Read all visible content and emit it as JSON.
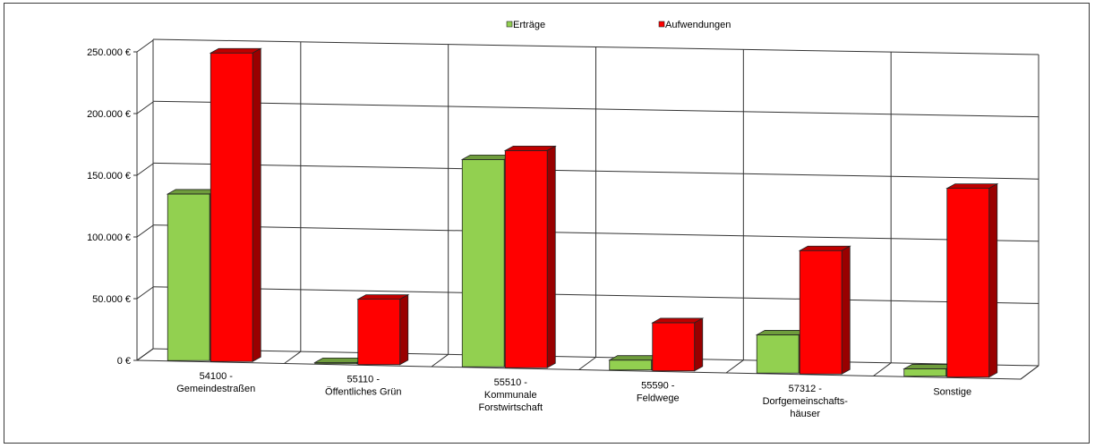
{
  "chart_data": {
    "type": "bar",
    "categories": [
      [
        "54100 -",
        "Gemeindestraßen"
      ],
      [
        "55110 -",
        "Öffentliches Grün"
      ],
      [
        "55510 -",
        "Kommunale",
        "Forstwirtschaft"
      ],
      [
        "55590 -",
        "Feldwege"
      ],
      [
        "57312 -",
        "Dorfgemeinschafts-",
        "häuser"
      ],
      [
        "Sonstige"
      ]
    ],
    "series": [
      {
        "name": "Erträge",
        "color": "#92d050",
        "values": [
          135000,
          1000,
          168000,
          8000,
          31000,
          6000
        ]
      },
      {
        "name": "Aufwendungen",
        "color": "#ff0000",
        "values": [
          250000,
          53000,
          176000,
          39000,
          100000,
          153000
        ]
      }
    ],
    "y_ticks": [
      "0 €",
      "50.000 €",
      "100.000 €",
      "150.000 €",
      "200.000 €",
      "250.000 €"
    ],
    "ylim": [
      0,
      250000
    ],
    "grid": true,
    "legend_position": "top-center"
  }
}
